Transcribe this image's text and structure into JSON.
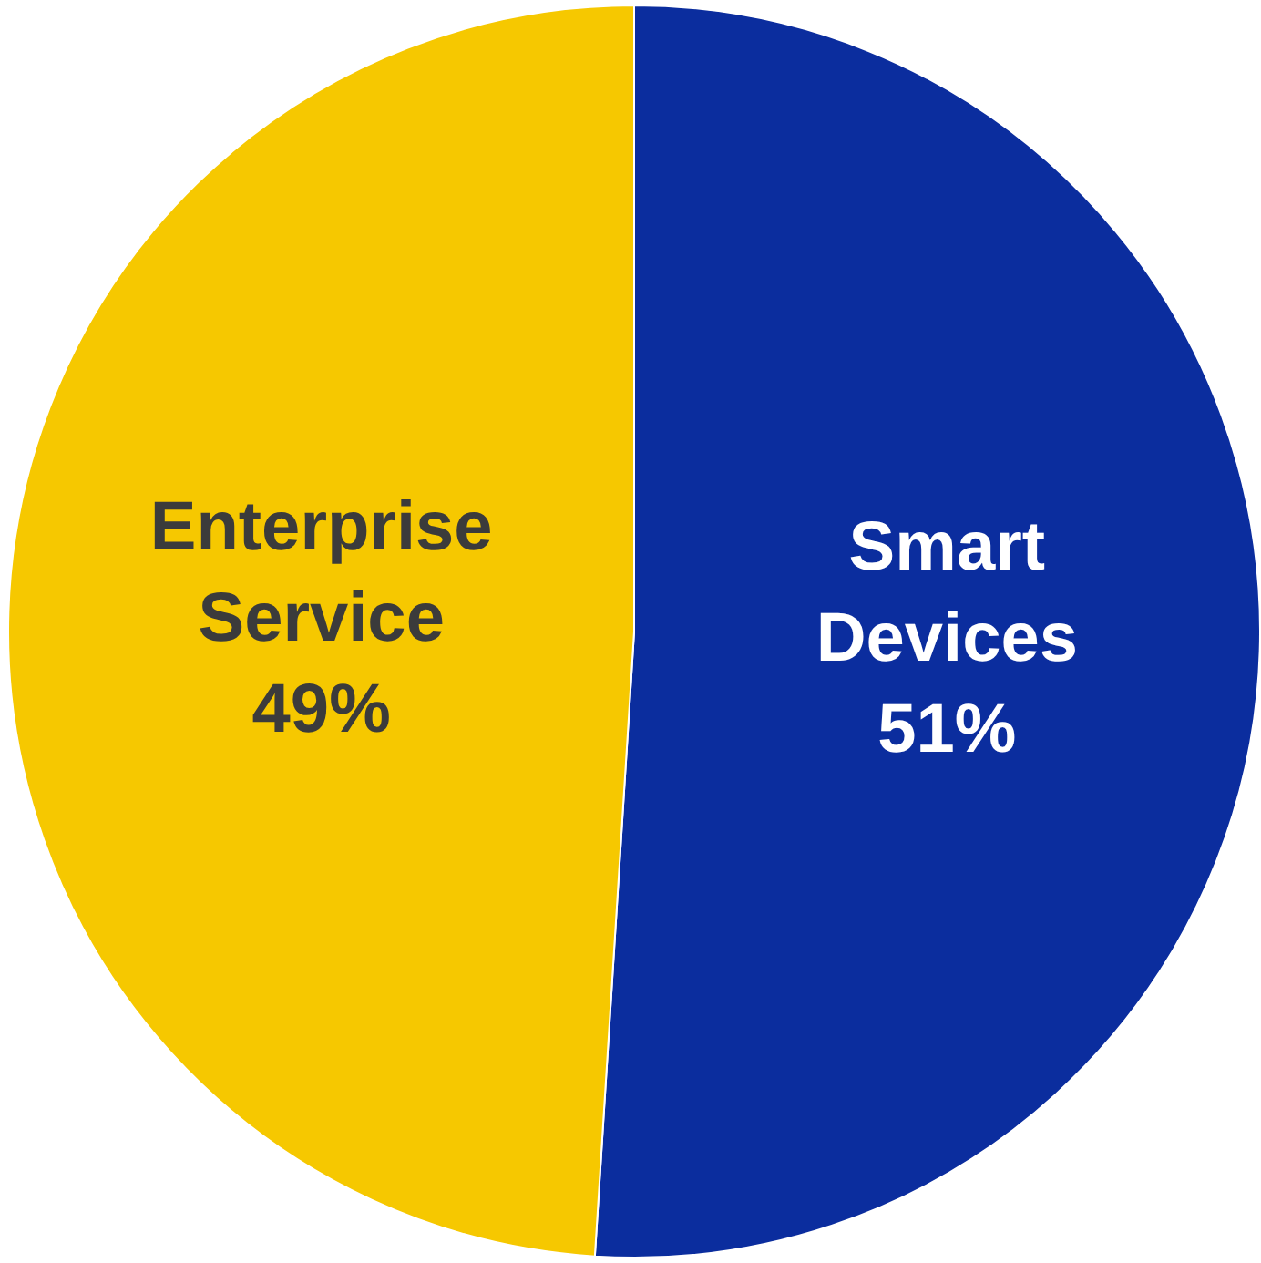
{
  "chart_data": {
    "type": "pie",
    "categories": [
      "Smart Devices",
      "Enterprise Service"
    ],
    "values": [
      51,
      49
    ],
    "colors": [
      "#0b2d9e",
      "#f6c800"
    ],
    "value_labels": [
      "51%",
      "49%"
    ],
    "legend": false
  }
}
